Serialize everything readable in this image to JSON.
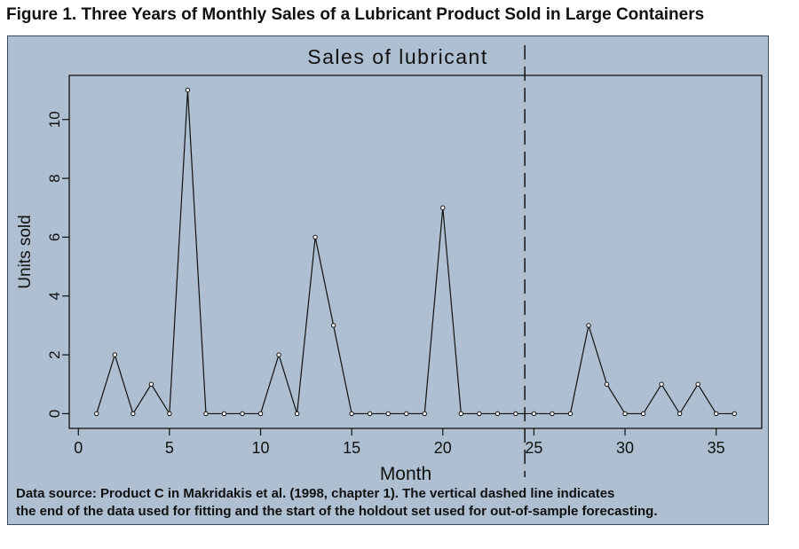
{
  "figure": {
    "title": "Figure 1. Three Years of Monthly Sales of a Lubricant Product Sold in Large Containers",
    "caption_line1": "Data source: Product C in Makridakis et al. (1998, chapter 1). The vertical dashed line indicates",
    "caption_line2": "the end of the data used for fitting and the start of the holdout set used for out-of-sample forecasting."
  },
  "colors": {
    "panel_background": "#aebfd1",
    "line": "#111111"
  },
  "chart_data": {
    "type": "line",
    "title": "Sales of lubricant",
    "xlabel": "Month",
    "ylabel": "Units sold",
    "x": [
      1,
      2,
      3,
      4,
      5,
      6,
      7,
      8,
      9,
      10,
      11,
      12,
      13,
      14,
      15,
      16,
      17,
      18,
      19,
      20,
      21,
      22,
      23,
      24,
      25,
      26,
      27,
      28,
      29,
      30,
      31,
      32,
      33,
      34,
      35,
      36
    ],
    "series": [
      {
        "values": [
          0,
          2,
          0,
          1,
          0,
          11,
          0,
          0,
          0,
          0,
          2,
          0,
          6,
          3,
          0,
          0,
          0,
          0,
          0,
          7,
          0,
          0,
          0,
          0,
          0,
          0,
          0,
          3,
          1,
          0,
          0,
          1,
          0,
          1,
          0,
          0
        ]
      }
    ],
    "xlim": [
      -0.5,
      37.5
    ],
    "ylim": [
      -0.5,
      11.5
    ],
    "xticks": [
      0,
      5,
      10,
      15,
      20,
      25,
      30,
      35
    ],
    "yticks": [
      0,
      2,
      4,
      6,
      8,
      10
    ],
    "xtick_labels": [
      "0",
      "5",
      "10",
      "15",
      "20",
      "25",
      "30",
      "35"
    ],
    "ytick_labels": [
      "0",
      "2",
      "4",
      "6",
      "8",
      "10"
    ],
    "holdout_start_x": 24.5,
    "grid": false,
    "markers": "open-circle"
  }
}
